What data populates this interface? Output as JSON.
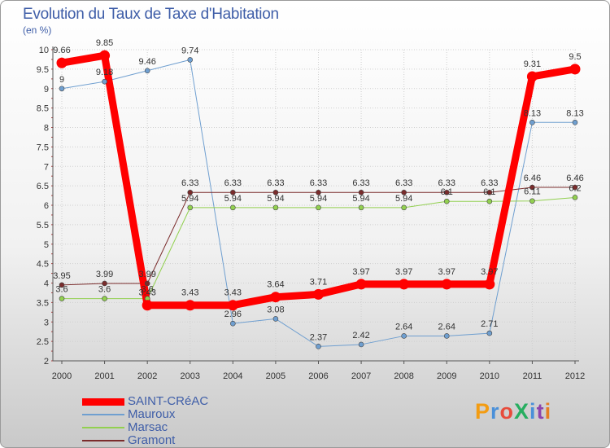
{
  "chart_data": {
    "type": "line",
    "title": "Evolution du Taux de Taxe d'Habitation",
    "subtitle": "(en %)",
    "xlabel": "",
    "ylabel": "",
    "x": [
      "2000",
      "2001",
      "2002",
      "2003",
      "2004",
      "2005",
      "2006",
      "2007",
      "2008",
      "2009",
      "2010",
      "2011",
      "2012"
    ],
    "y_ticks": [
      "2",
      "2.5",
      "3",
      "3.5",
      "4",
      "4.5",
      "5",
      "5.5",
      "6",
      "6.5",
      "7",
      "7.5",
      "8",
      "8.5",
      "9",
      "9.5",
      "10"
    ],
    "ylim": [
      2,
      10
    ],
    "grid": true,
    "legend_position": "bottom-left",
    "series": [
      {
        "name": "SAINT-CRéAC",
        "color": "#ff0000",
        "values": [
          9.66,
          9.85,
          3.43,
          3.43,
          3.43,
          3.64,
          3.71,
          3.97,
          3.97,
          3.97,
          3.97,
          9.31,
          9.5
        ],
        "labels": [
          "9.66",
          "9.85",
          "3.43",
          "3.43",
          "3.43",
          "3.64",
          "3.71",
          "3.97",
          "3.97",
          "3.97",
          "3.97",
          "9.31",
          "9.5"
        ]
      },
      {
        "name": "Mauroux",
        "color": "#6f9fd0",
        "values": [
          9,
          9.18,
          9.46,
          9.74,
          2.96,
          3.08,
          2.37,
          2.42,
          2.64,
          2.64,
          2.71,
          8.13,
          8.13
        ],
        "labels": [
          "9",
          "9.18",
          "9.46",
          "9.74",
          "2.96",
          "3.08",
          "2.37",
          "2.42",
          "2.64",
          "2.64",
          "2.71",
          "8.13",
          "8.13"
        ]
      },
      {
        "name": "Marsac",
        "color": "#92d050",
        "values": [
          3.6,
          3.6,
          3.6,
          5.94,
          5.94,
          5.94,
          5.94,
          5.94,
          5.94,
          6.1,
          6.1,
          6.11,
          6.2
        ],
        "labels": [
          "3.6",
          "3.6",
          "3.6",
          "5.94",
          "5.94",
          "5.94",
          "5.94",
          "5.94",
          "5.94",
          "6.1",
          "6.1",
          "6.11",
          "6.2"
        ]
      },
      {
        "name": "Gramont",
        "color": "#7a2c2c",
        "values": [
          3.95,
          3.99,
          3.99,
          6.33,
          6.33,
          6.33,
          6.33,
          6.33,
          6.33,
          6.33,
          6.33,
          6.46,
          6.46
        ],
        "labels": [
          "3.95",
          "3.99",
          "3.99",
          "6.33",
          "6.33",
          "6.33",
          "6.33",
          "6.33",
          "6.33",
          "6.33",
          "6.33",
          "6.46",
          "6.46"
        ]
      }
    ]
  },
  "logo": {
    "text": "ProXiti",
    "colors": [
      "#f39c12",
      "#4a90d9",
      "#e74c3c",
      "#27ae60",
      "#4a90d9",
      "#8e44ad",
      "#e67e22"
    ]
  }
}
